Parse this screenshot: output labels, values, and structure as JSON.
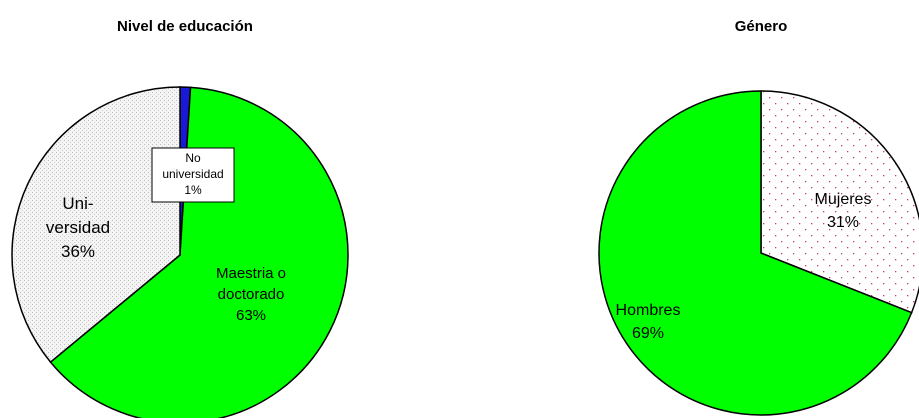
{
  "chart_data": [
    {
      "type": "pie",
      "title": "Nivel de educación",
      "slices": [
        {
          "label_lines": [
            "No",
            "universidad",
            "1%"
          ],
          "value": 1,
          "color": "#1a1ad6",
          "pattern": "solid"
        },
        {
          "label_lines": [
            "Maestria o",
            "doctorado",
            "63%"
          ],
          "value": 63,
          "color": "#00ff00",
          "pattern": "solid"
        },
        {
          "label_lines": [
            "Uni-",
            "versidad",
            "36%"
          ],
          "value": 36,
          "color": "#f2f2f2",
          "pattern": "grey-dots"
        }
      ]
    },
    {
      "type": "pie",
      "title": "Género",
      "slices": [
        {
          "label_lines": [
            "Mujeres",
            "31%"
          ],
          "value": 31,
          "color": "#ffffff",
          "pattern": "red-dots"
        },
        {
          "label_lines": [
            "Hombres",
            "69%"
          ],
          "value": 69,
          "color": "#00ff00",
          "pattern": "solid"
        }
      ]
    }
  ]
}
